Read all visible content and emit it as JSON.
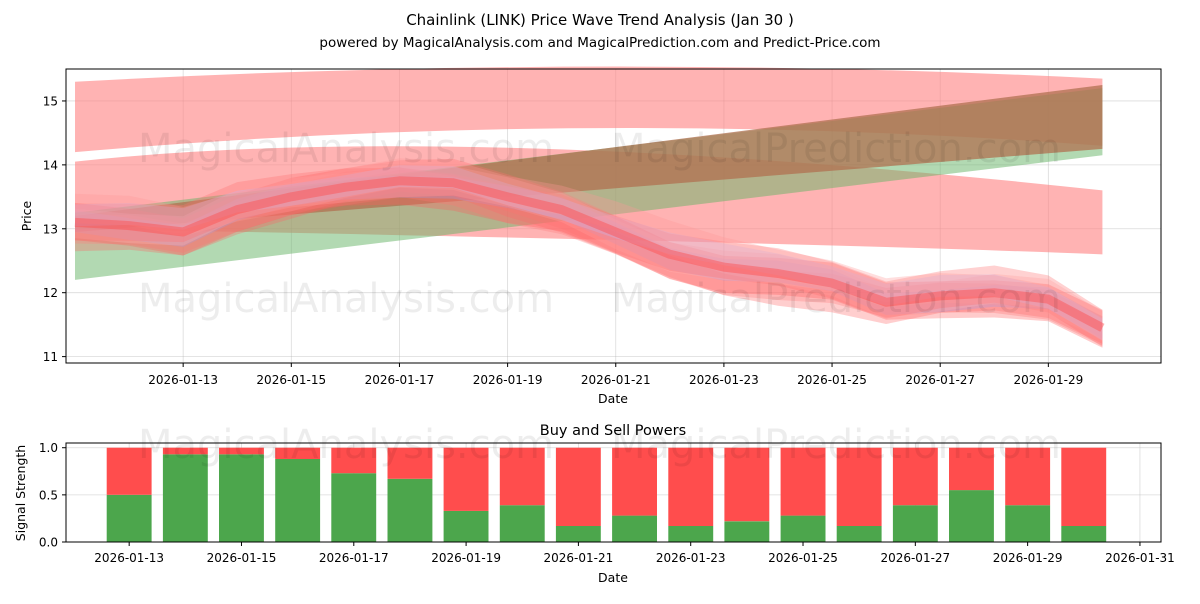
{
  "title": "Chainlink (LINK) Price Wave Trend Analysis (Jan 30 )",
  "subtitle": "powered by MagicalAnalysis.com and MagicalPrediction.com and Predict-Price.com",
  "watermarks": [
    "MagicalAnalysis.com",
    "MagicalPrediction.com"
  ],
  "colors": {
    "up": "#4ca64c",
    "down": "#ff4d4d",
    "lavender": "#9a8fd8",
    "green_band": "#99cc99",
    "red_band": "#ff9999"
  },
  "chart_data": [
    {
      "type": "area",
      "title": "",
      "xlabel": "Date",
      "ylabel": "Price",
      "xlim": [
        "2026-01-10T20:00",
        "2026-01-31T02:00"
      ],
      "ylim": [
        10.9,
        15.5
      ],
      "y_ticks": [
        11,
        12,
        13,
        14,
        15
      ],
      "x_ticks": [
        "2026-01-13",
        "2026-01-15",
        "2026-01-17",
        "2026-01-19",
        "2026-01-21",
        "2026-01-23",
        "2026-01-25",
        "2026-01-27",
        "2026-01-29"
      ],
      "grid": true,
      "dates": [
        "2026-01-11",
        "2026-01-12",
        "2026-01-13",
        "2026-01-14",
        "2026-01-15",
        "2026-01-16",
        "2026-01-17",
        "2026-01-18",
        "2026-01-19",
        "2026-01-20",
        "2026-01-21",
        "2026-01-22",
        "2026-01-23",
        "2026-01-24",
        "2026-01-25",
        "2026-01-26",
        "2026-01-27",
        "2026-01-28",
        "2026-01-29",
        "2026-01-30"
      ],
      "center_price": [
        13.1,
        13.05,
        12.95,
        13.3,
        13.5,
        13.65,
        13.75,
        13.72,
        13.5,
        13.3,
        12.95,
        12.6,
        12.4,
        12.3,
        12.15,
        11.85,
        11.95,
        12.0,
        11.9,
        11.45
      ],
      "trend_bands": [
        {
          "name": "upper red trend",
          "color": "red",
          "start_date": "2026-01-11",
          "end_date": "2026-01-30",
          "start": [
            14.2,
            15.3
          ],
          "end": [
            14.3,
            15.35
          ]
        },
        {
          "name": "middle red trend",
          "color": "red",
          "start_date": "2026-01-11",
          "end_date": "2026-01-30",
          "start": [
            13.0,
            14.05
          ],
          "end": [
            12.6,
            13.6
          ]
        },
        {
          "name": "green trend",
          "color": "green",
          "start_date": "2026-01-11",
          "end_date": "2026-01-30",
          "start": [
            12.2,
            13.25
          ],
          "end": [
            14.15,
            15.2
          ]
        },
        {
          "name": "brown trend",
          "color": "brown",
          "start_date": "2026-01-11",
          "end_date": "2026-01-30",
          "start": [
            12.95,
            13.2
          ],
          "end": [
            14.25,
            15.25
          ]
        }
      ]
    },
    {
      "type": "bar",
      "title": "Buy and Sell Powers",
      "xlabel": "Date",
      "ylabel": "Signal Strength",
      "ylim": [
        0,
        1.05
      ],
      "y_ticks": [
        "0.0",
        "0.5",
        "1.0"
      ],
      "x_ticks": [
        "2026-01-13",
        "2026-01-15",
        "2026-01-17",
        "2026-01-19",
        "2026-01-21",
        "2026-01-23",
        "2026-01-25",
        "2026-01-27",
        "2026-01-29",
        "2026-01-31"
      ],
      "categories": [
        "2026-01-13",
        "2026-01-14",
        "2026-01-15",
        "2026-01-16",
        "2026-01-17",
        "2026-01-18",
        "2026-01-19",
        "2026-01-20",
        "2026-01-21",
        "2026-01-22",
        "2026-01-23",
        "2026-01-24",
        "2026-01-25",
        "2026-01-26",
        "2026-01-27",
        "2026-01-28",
        "2026-01-29",
        "2026-01-30"
      ],
      "series": [
        {
          "name": "Buy",
          "color": "#4ca64c",
          "values": [
            0.5,
            0.93,
            0.93,
            0.88,
            0.73,
            0.67,
            0.33,
            0.39,
            0.17,
            0.28,
            0.17,
            0.22,
            0.28,
            0.17,
            0.39,
            0.55,
            0.39,
            0.17
          ]
        },
        {
          "name": "Sell",
          "color": "#ff4d4d",
          "values": [
            0.5,
            0.07,
            0.07,
            0.12,
            0.27,
            0.33,
            0.67,
            0.61,
            0.83,
            0.72,
            0.83,
            0.78,
            0.72,
            0.83,
            0.61,
            0.45,
            0.61,
            0.83
          ]
        }
      ],
      "grid": true
    }
  ]
}
